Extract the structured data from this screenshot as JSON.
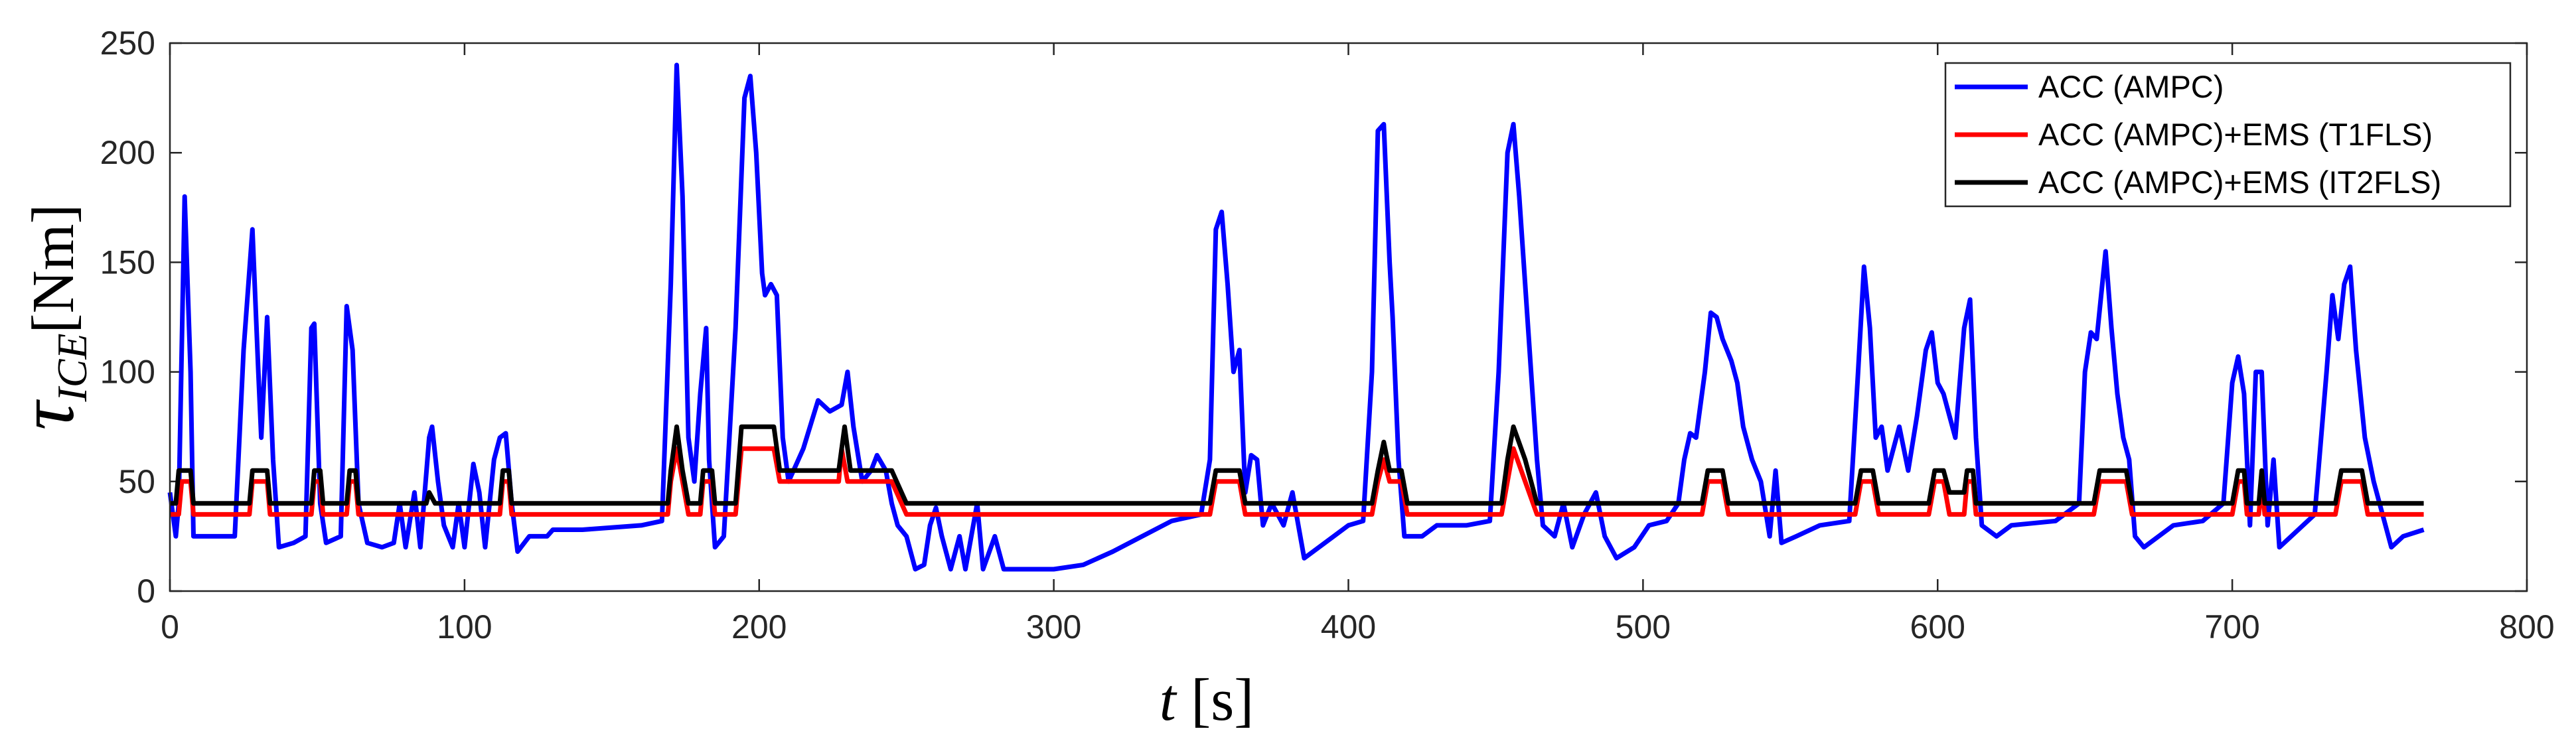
{
  "chart_data": {
    "type": "line",
    "xlabel": {
      "symbol": "t",
      "unit": "[s]"
    },
    "ylabel": {
      "symbol": "τ",
      "subscript": "ICE",
      "unit": "[Nm]"
    },
    "xlim": [
      0,
      800
    ],
    "xticks": [
      0,
      100,
      200,
      300,
      400,
      500,
      600,
      700,
      800
    ],
    "ylim": [
      0,
      250
    ],
    "yticks": [
      0,
      50,
      100,
      150,
      200,
      250
    ],
    "grid": false,
    "legend": "upper right",
    "series": [
      {
        "name": "ACC (AMPC)",
        "color": "#0000ff",
        "x": [
          0,
          2,
          3,
          5,
          7,
          8,
          15,
          22,
          25,
          28,
          30,
          31,
          33,
          35,
          37,
          42,
          46,
          48,
          49,
          51,
          53,
          58,
          60,
          62,
          64,
          67,
          72,
          76,
          78,
          80,
          83,
          85,
          88,
          89,
          91,
          93,
          96,
          98,
          100,
          103,
          105,
          107,
          110,
          112,
          114,
          116,
          118,
          122,
          128,
          130,
          140,
          160,
          167,
          170,
          172,
          174,
          176,
          178,
          180,
          182,
          183,
          185,
          188,
          192,
          195,
          197,
          199,
          201,
          202,
          204,
          206,
          208,
          210,
          215,
          220,
          224,
          228,
          230,
          232,
          235,
          238,
          240,
          243,
          245,
          247,
          250,
          253,
          256,
          258,
          260,
          262,
          265,
          268,
          270,
          274,
          276,
          280,
          283,
          290,
          300,
          310,
          320,
          330,
          340,
          350,
          353,
          355,
          357,
          359,
          361,
          363,
          365,
          367,
          369,
          371,
          374,
          378,
          381,
          385,
          390,
          395,
          400,
          405,
          408,
          410,
          412,
          414,
          415,
          417,
          419,
          425,
          430,
          440,
          448,
          451,
          454,
          456,
          458,
          460,
          462,
          464,
          466,
          470,
          473,
          476,
          480,
          484,
          487,
          491,
          497,
          502,
          508,
          512,
          514,
          516,
          518,
          521,
          523,
          525,
          527,
          530,
          532,
          534,
          537,
          540,
          543,
          545,
          547,
          552,
          560,
          570,
          573,
          575,
          577,
          579,
          581,
          583,
          587,
          590,
          593,
          596,
          598,
          600,
          602,
          604,
          606,
          609,
          611,
          613,
          615,
          620,
          625,
          640,
          648,
          650,
          652,
          654,
          657,
          659,
          661,
          663,
          665,
          667,
          670,
          675,
          680,
          690,
          697,
          700,
          702,
          704,
          706,
          708,
          710,
          712,
          714,
          716,
          720,
          728,
          732,
          734,
          736,
          738,
          740,
          742,
          745,
          748,
          751,
          754,
          758,
          765
        ],
        "values": [
          45,
          25,
          40,
          180,
          100,
          25,
          25,
          25,
          110,
          165,
          100,
          70,
          125,
          60,
          20,
          22,
          25,
          120,
          122,
          40,
          22,
          25,
          130,
          110,
          40,
          22,
          20,
          22,
          40,
          20,
          45,
          20,
          70,
          75,
          50,
          30,
          20,
          40,
          20,
          58,
          45,
          20,
          60,
          70,
          72,
          40,
          18,
          25,
          25,
          28,
          28,
          30,
          32,
          140,
          240,
          180,
          70,
          50,
          90,
          120,
          60,
          20,
          25,
          120,
          225,
          235,
          200,
          145,
          135,
          140,
          135,
          70,
          50,
          65,
          87,
          82,
          85,
          100,
          75,
          50,
          55,
          62,
          55,
          40,
          30,
          25,
          10,
          12,
          30,
          38,
          25,
          10,
          25,
          10,
          40,
          10,
          25,
          10,
          10,
          10,
          12,
          18,
          25,
          32,
          35,
          60,
          165,
          173,
          140,
          100,
          110,
          45,
          62,
          60,
          30,
          40,
          30,
          45,
          15,
          20,
          25,
          30,
          32,
          100,
          210,
          213,
          150,
          125,
          60,
          25,
          25,
          30,
          30,
          32,
          100,
          200,
          213,
          180,
          140,
          100,
          60,
          30,
          25,
          40,
          20,
          35,
          45,
          25,
          15,
          20,
          30,
          32,
          40,
          60,
          72,
          70,
          100,
          127,
          125,
          115,
          105,
          95,
          75,
          60,
          50,
          25,
          55,
          22,
          25,
          30,
          32,
          100,
          148,
          120,
          70,
          75,
          55,
          75,
          55,
          80,
          110,
          118,
          95,
          90,
          80,
          70,
          120,
          133,
          70,
          30,
          25,
          30,
          32,
          40,
          100,
          118,
          115,
          155,
          120,
          90,
          70,
          60,
          25,
          20,
          25,
          30,
          32,
          40,
          95,
          107,
          90,
          30,
          100,
          100,
          30,
          60,
          20,
          25,
          35,
          100,
          135,
          115,
          140,
          148,
          110,
          70,
          50,
          35,
          20,
          25,
          28
        ]
      },
      {
        "name": "ACC (AMPC)+EMS (T1FLS)",
        "color": "#ff0000",
        "x": [
          0,
          3,
          4,
          7,
          8,
          27,
          28,
          33,
          34,
          48,
          49,
          51,
          52,
          60,
          61,
          63,
          64,
          112,
          113,
          115,
          116,
          169,
          170,
          172,
          174,
          176,
          180,
          181,
          184,
          185,
          192,
          194,
          205,
          207,
          227,
          228,
          230,
          245,
          250,
          353,
          355,
          363,
          365,
          408,
          410,
          412,
          414,
          418,
          420,
          452,
          454,
          456,
          460,
          464,
          520,
          522,
          527,
          529,
          572,
          574,
          578,
          580,
          597,
          599,
          602,
          604,
          609,
          610,
          612,
          613,
          653,
          655,
          664,
          666,
          700,
          702,
          704,
          705,
          709,
          710,
          711,
          735,
          737,
          744,
          746,
          765
        ],
        "values": [
          35,
          35,
          50,
          50,
          35,
          35,
          50,
          50,
          35,
          35,
          50,
          50,
          35,
          35,
          50,
          50,
          35,
          35,
          50,
          50,
          35,
          35,
          50,
          65,
          50,
          35,
          35,
          50,
          50,
          35,
          35,
          65,
          65,
          50,
          50,
          65,
          50,
          50,
          35,
          35,
          50,
          50,
          35,
          35,
          50,
          60,
          50,
          50,
          35,
          35,
          50,
          65,
          50,
          35,
          35,
          50,
          50,
          35,
          35,
          50,
          50,
          35,
          35,
          50,
          50,
          35,
          35,
          50,
          50,
          35,
          35,
          50,
          50,
          35,
          35,
          50,
          50,
          35,
          35,
          50,
          35,
          35,
          50,
          50,
          35,
          35
        ]
      },
      {
        "name": "ACC (AMPC)+EMS (IT2FLS)",
        "color": "#000000",
        "x": [
          0,
          2,
          3,
          7,
          8,
          27,
          28,
          33,
          34,
          48,
          49,
          51,
          52,
          60,
          61,
          63,
          64,
          87,
          88,
          90,
          112,
          113,
          115,
          116,
          169,
          170,
          172,
          174,
          176,
          180,
          181,
          184,
          185,
          192,
          194,
          205,
          207,
          227,
          229,
          231,
          245,
          250,
          353,
          355,
          363,
          365,
          408,
          410,
          412,
          414,
          418,
          420,
          452,
          454,
          456,
          460,
          464,
          520,
          522,
          527,
          529,
          572,
          574,
          578,
          580,
          597,
          599,
          602,
          604,
          609,
          610,
          612,
          613,
          653,
          655,
          664,
          666,
          700,
          702,
          704,
          705,
          709,
          710,
          711,
          735,
          737,
          744,
          746,
          765
        ],
        "values": [
          40,
          40,
          55,
          55,
          40,
          40,
          55,
          55,
          40,
          40,
          55,
          55,
          40,
          40,
          55,
          55,
          40,
          40,
          45,
          40,
          40,
          55,
          55,
          40,
          40,
          55,
          75,
          55,
          40,
          40,
          55,
          55,
          40,
          40,
          75,
          75,
          55,
          55,
          75,
          55,
          55,
          40,
          40,
          55,
          55,
          40,
          40,
          55,
          68,
          55,
          55,
          40,
          40,
          60,
          75,
          60,
          40,
          40,
          55,
          55,
          40,
          40,
          55,
          55,
          40,
          40,
          55,
          55,
          45,
          45,
          55,
          55,
          40,
          40,
          55,
          55,
          40,
          40,
          55,
          55,
          40,
          40,
          55,
          40,
          40,
          55,
          55,
          40,
          40
        ]
      }
    ]
  }
}
